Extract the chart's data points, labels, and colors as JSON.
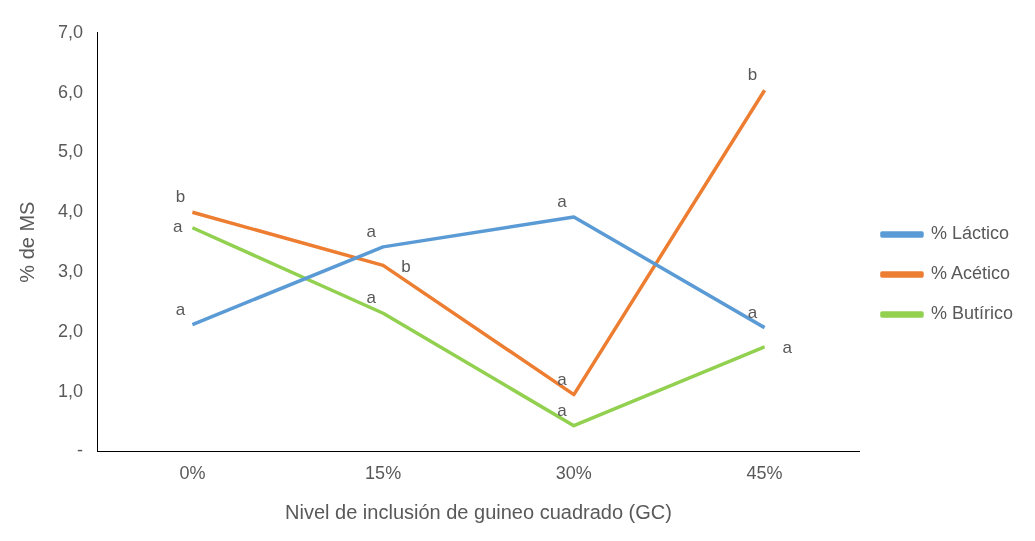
{
  "chart_data": {
    "type": "line",
    "xlabel": "Nivel de inclusión de guineo cuadrado (GC)",
    "ylabel": "% de MS",
    "categories": [
      "0%",
      "15%",
      "30%",
      "45%"
    ],
    "series": [
      {
        "name": "% Láctico",
        "color": "#5b9bd5",
        "values": [
          2.12,
          3.42,
          3.92,
          2.07
        ]
      },
      {
        "name": "% Acético",
        "color": "#ed7d31",
        "values": [
          4.0,
          3.11,
          0.95,
          6.04
        ]
      },
      {
        "name": "% Butírico",
        "color": "#92d050",
        "values": [
          3.74,
          2.31,
          0.43,
          1.75
        ]
      }
    ],
    "ylim": [
      0,
      7
    ],
    "yticks": [
      {
        "value": 0,
        "label": "-"
      },
      {
        "value": 1,
        "label": "1,0"
      },
      {
        "value": 2,
        "label": "2,0"
      },
      {
        "value": 3,
        "label": "3,0"
      },
      {
        "value": 4,
        "label": "4,0"
      },
      {
        "value": 5,
        "label": "5,0"
      },
      {
        "value": 6,
        "label": "6,0"
      },
      {
        "value": 7,
        "label": "7,0"
      }
    ],
    "grid": false,
    "legend": "right",
    "marker": "none",
    "line_style": "solid",
    "annotations": [
      {
        "text": "a",
        "x": "0%",
        "y": 2.12
      },
      {
        "text": "a",
        "x": "15%",
        "y": 3.42
      },
      {
        "text": "a",
        "x": "30%",
        "y": 3.92
      },
      {
        "text": "a",
        "x": "45%",
        "y": 2.07
      },
      {
        "text": "b",
        "x": "0%",
        "y": 4.0
      },
      {
        "text": "b",
        "x": "15%",
        "y": 3.11
      },
      {
        "text": "a",
        "x": "30%",
        "y": 0.95
      },
      {
        "text": "b",
        "x": "45%",
        "y": 6.04
      },
      {
        "text": "a",
        "x": "0%",
        "y": 3.74
      },
      {
        "text": "a",
        "x": "15%",
        "y": 2.31
      },
      {
        "text": "a",
        "x": "30%",
        "y": 0.43
      },
      {
        "text": "a",
        "x": "45%",
        "y": 1.75
      }
    ]
  }
}
